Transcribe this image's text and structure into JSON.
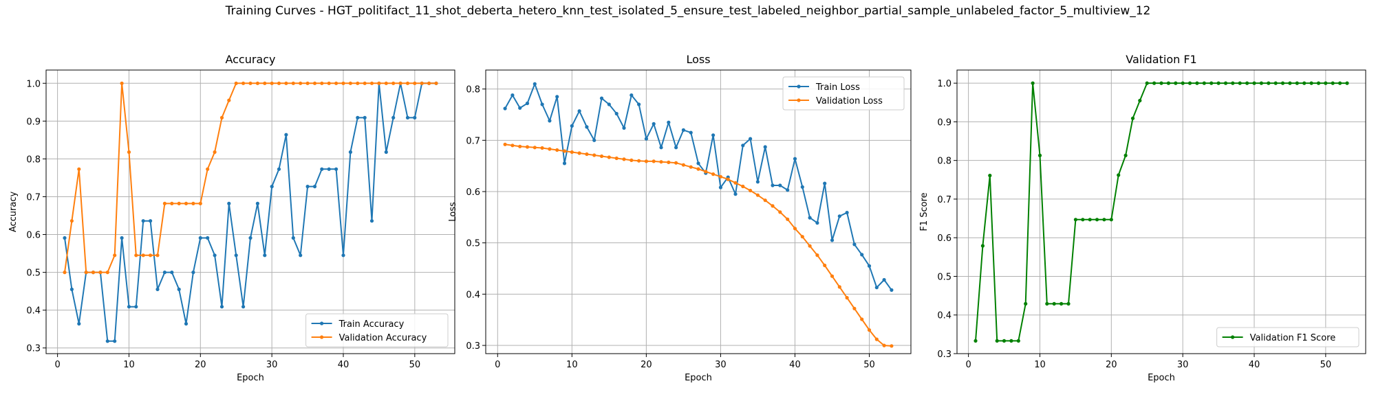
{
  "figure": {
    "suptitle": "Training Curves - HGT_politifact_11_shot_deberta_hetero_knn_test_isolated_5_ensure_test_labeled_neighbor_partial_sample_unlabeled_factor_5_multiview_12"
  },
  "chart_data": [
    {
      "type": "line",
      "title": "Accuracy",
      "xlabel": "Epoch",
      "ylabel": "Accuracy",
      "xlim": [
        -1.6,
        55.6
      ],
      "ylim": [
        0.285,
        1.035
      ],
      "xticks": [
        0,
        10,
        20,
        30,
        40,
        50
      ],
      "yticks": [
        0.3,
        0.4,
        0.5,
        0.6,
        0.7,
        0.8,
        0.9,
        1.0
      ],
      "ytick_labels": [
        "0.3",
        "0.4",
        "0.5",
        "0.6",
        "0.7",
        "0.8",
        "0.9",
        "1.0"
      ],
      "grid": true,
      "legend": "lower-right",
      "x": [
        1,
        2,
        3,
        4,
        5,
        6,
        7,
        8,
        9,
        10,
        11,
        12,
        13,
        14,
        15,
        16,
        17,
        18,
        19,
        20,
        21,
        22,
        23,
        24,
        25,
        26,
        27,
        28,
        29,
        30,
        31,
        32,
        33,
        34,
        35,
        36,
        37,
        38,
        39,
        40,
        41,
        42,
        43,
        44,
        45,
        46,
        47,
        48,
        49,
        50,
        51,
        52,
        53
      ],
      "series": [
        {
          "name": "Train Accuracy",
          "color": "#1f77b4",
          "values": [
            0.591,
            0.455,
            0.364,
            0.5,
            0.5,
            0.5,
            0.318,
            0.318,
            0.591,
            0.409,
            0.409,
            0.636,
            0.636,
            0.455,
            0.5,
            0.5,
            0.455,
            0.364,
            0.5,
            0.591,
            0.591,
            0.545,
            0.409,
            0.682,
            0.545,
            0.409,
            0.591,
            0.682,
            0.545,
            0.727,
            0.773,
            0.864,
            0.591,
            0.545,
            0.727,
            0.727,
            0.773,
            0.773,
            0.773,
            0.545,
            0.818,
            0.909,
            0.909,
            0.636,
            1.0,
            0.818,
            0.909,
            1.0,
            0.909,
            0.909,
            1.0,
            1.0,
            1.0
          ]
        },
        {
          "name": "Validation Accuracy",
          "color": "#ff7f0e",
          "values": [
            0.5,
            0.636,
            0.773,
            0.5,
            0.5,
            0.5,
            0.5,
            0.545,
            1.0,
            0.818,
            0.545,
            0.545,
            0.545,
            0.545,
            0.682,
            0.682,
            0.682,
            0.682,
            0.682,
            0.682,
            0.773,
            0.818,
            0.909,
            0.955,
            1.0,
            1.0,
            1.0,
            1.0,
            1.0,
            1.0,
            1.0,
            1.0,
            1.0,
            1.0,
            1.0,
            1.0,
            1.0,
            1.0,
            1.0,
            1.0,
            1.0,
            1.0,
            1.0,
            1.0,
            1.0,
            1.0,
            1.0,
            1.0,
            1.0,
            1.0,
            1.0,
            1.0,
            1.0
          ]
        }
      ]
    },
    {
      "type": "line",
      "title": "Loss",
      "xlabel": "Epoch",
      "ylabel": "Loss",
      "xlim": [
        -1.6,
        55.6
      ],
      "ylim": [
        0.284,
        0.837
      ],
      "xticks": [
        0,
        10,
        20,
        30,
        40,
        50
      ],
      "yticks": [
        0.3,
        0.4,
        0.5,
        0.6,
        0.7,
        0.8
      ],
      "ytick_labels": [
        "0.3",
        "0.4",
        "0.5",
        "0.6",
        "0.7",
        "0.8"
      ],
      "grid": true,
      "legend": "top-right",
      "x": [
        1,
        2,
        3,
        4,
        5,
        6,
        7,
        8,
        9,
        10,
        11,
        12,
        13,
        14,
        15,
        16,
        17,
        18,
        19,
        20,
        21,
        22,
        23,
        24,
        25,
        26,
        27,
        28,
        29,
        30,
        31,
        32,
        33,
        34,
        35,
        36,
        37,
        38,
        39,
        40,
        41,
        42,
        43,
        44,
        45,
        46,
        47,
        48,
        49,
        50,
        51,
        52,
        53
      ],
      "series": [
        {
          "name": "Train Loss",
          "color": "#1f77b4",
          "values": [
            0.762,
            0.788,
            0.763,
            0.772,
            0.81,
            0.77,
            0.738,
            0.785,
            0.655,
            0.728,
            0.757,
            0.726,
            0.7,
            0.782,
            0.77,
            0.752,
            0.724,
            0.788,
            0.77,
            0.703,
            0.732,
            0.686,
            0.735,
            0.686,
            0.72,
            0.715,
            0.655,
            0.636,
            0.71,
            0.608,
            0.628,
            0.595,
            0.69,
            0.703,
            0.619,
            0.687,
            0.612,
            0.612,
            0.603,
            0.664,
            0.609,
            0.549,
            0.539,
            0.616,
            0.505,
            0.552,
            0.559,
            0.497,
            0.477,
            0.455,
            0.413,
            0.428,
            0.408
          ]
        },
        {
          "name": "Validation Loss",
          "color": "#ff7f0e",
          "values": [
            0.692,
            0.69,
            0.688,
            0.687,
            0.686,
            0.685,
            0.683,
            0.681,
            0.679,
            0.677,
            0.675,
            0.673,
            0.671,
            0.669,
            0.667,
            0.665,
            0.663,
            0.661,
            0.66,
            0.659,
            0.659,
            0.658,
            0.657,
            0.656,
            0.652,
            0.648,
            0.644,
            0.639,
            0.634,
            0.629,
            0.624,
            0.617,
            0.61,
            0.602,
            0.593,
            0.583,
            0.572,
            0.56,
            0.546,
            0.528,
            0.512,
            0.494,
            0.476,
            0.456,
            0.435,
            0.414,
            0.393,
            0.372,
            0.351,
            0.33,
            0.312,
            0.3,
            0.299
          ]
        }
      ]
    },
    {
      "type": "line",
      "title": "Validation F1",
      "xlabel": "Epoch",
      "ylabel": "F1 Score",
      "xlim": [
        -1.6,
        55.6
      ],
      "ylim": [
        0.3,
        1.034
      ],
      "xticks": [
        0,
        10,
        20,
        30,
        40,
        50
      ],
      "yticks": [
        0.3,
        0.4,
        0.5,
        0.6,
        0.7,
        0.8,
        0.9,
        1.0
      ],
      "ytick_labels": [
        "0.3",
        "0.4",
        "0.5",
        "0.6",
        "0.7",
        "0.8",
        "0.9",
        "1.0"
      ],
      "grid": true,
      "legend": "lower-right",
      "x": [
        1,
        2,
        3,
        4,
        5,
        6,
        7,
        8,
        9,
        10,
        11,
        12,
        13,
        14,
        15,
        16,
        17,
        18,
        19,
        20,
        21,
        22,
        23,
        24,
        25,
        26,
        27,
        28,
        29,
        30,
        31,
        32,
        33,
        34,
        35,
        36,
        37,
        38,
        39,
        40,
        41,
        42,
        43,
        44,
        45,
        46,
        47,
        48,
        49,
        50,
        51,
        52,
        53
      ],
      "series": [
        {
          "name": "Validation F1 Score",
          "color": "#008000",
          "values": [
            0.333,
            0.579,
            0.761,
            0.333,
            0.333,
            0.333,
            0.333,
            0.429,
            1.0,
            0.813,
            0.429,
            0.429,
            0.429,
            0.429,
            0.647,
            0.647,
            0.647,
            0.647,
            0.647,
            0.647,
            0.762,
            0.813,
            0.909,
            0.955,
            1.0,
            1.0,
            1.0,
            1.0,
            1.0,
            1.0,
            1.0,
            1.0,
            1.0,
            1.0,
            1.0,
            1.0,
            1.0,
            1.0,
            1.0,
            1.0,
            1.0,
            1.0,
            1.0,
            1.0,
            1.0,
            1.0,
            1.0,
            1.0,
            1.0,
            1.0,
            1.0,
            1.0,
            1.0
          ]
        }
      ]
    }
  ]
}
